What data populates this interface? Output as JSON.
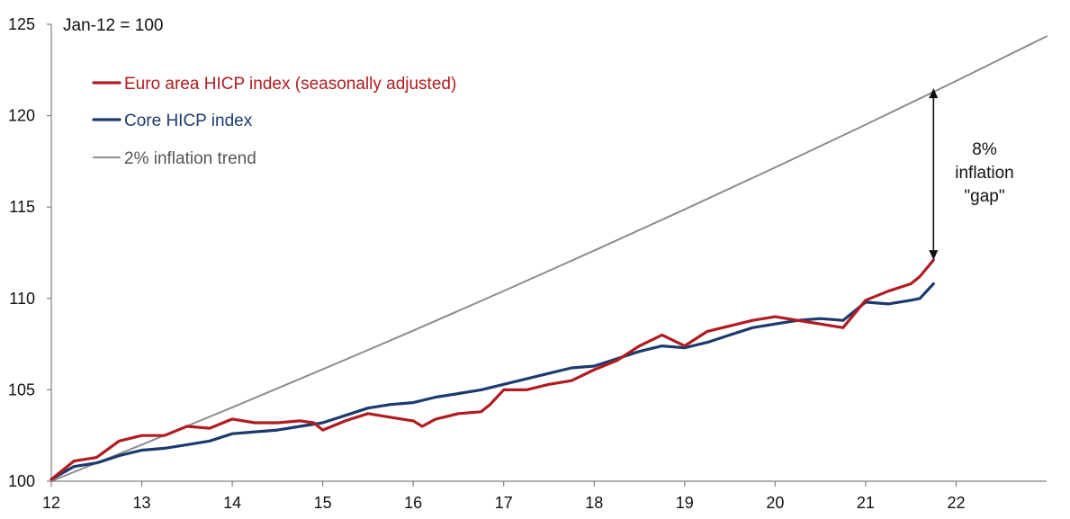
{
  "chart_data": {
    "type": "line",
    "unit_note": "Jan-12 = 100",
    "title": "",
    "xlabel": "",
    "ylabel": "",
    "xlim": [
      12,
      23
    ],
    "ylim": [
      100,
      125
    ],
    "x_ticks": [
      12,
      13,
      14,
      15,
      16,
      17,
      18,
      19,
      20,
      21,
      22
    ],
    "x_tick_labels": [
      "12",
      "13",
      "14",
      "15",
      "16",
      "17",
      "18",
      "19",
      "20",
      "21",
      "22"
    ],
    "y_ticks": [
      100,
      105,
      110,
      115,
      120,
      125
    ],
    "y_tick_labels": [
      "100",
      "105",
      "110",
      "115",
      "120",
      "125"
    ],
    "grid": false,
    "legend_position": "top-left",
    "annotation": {
      "lines": [
        "8%",
        "inflation",
        "\"gap\""
      ],
      "x": 21.75,
      "y_from": 112.1,
      "y_to": 121.5
    },
    "series": [
      {
        "name": "Euro area HICP index (seasonally adjusted)",
        "color": "#b01c20",
        "x": [
          12.0,
          12.25,
          12.5,
          12.75,
          13.0,
          13.25,
          13.5,
          13.75,
          14.0,
          14.25,
          14.5,
          14.75,
          14.9,
          15.0,
          15.25,
          15.5,
          15.75,
          16.0,
          16.1,
          16.25,
          16.5,
          16.75,
          16.85,
          17.0,
          17.25,
          17.5,
          17.75,
          18.0,
          18.25,
          18.5,
          18.75,
          19.0,
          19.25,
          19.5,
          19.75,
          20.0,
          20.25,
          20.5,
          20.75,
          21.0,
          21.25,
          21.5,
          21.6,
          21.75
        ],
        "values": [
          100.1,
          101.1,
          101.3,
          102.2,
          102.5,
          102.5,
          103.0,
          102.9,
          103.4,
          103.2,
          103.2,
          103.3,
          103.2,
          102.8,
          103.3,
          103.7,
          103.5,
          103.3,
          103.0,
          103.4,
          103.7,
          103.8,
          104.2,
          105.0,
          105.0,
          105.3,
          105.5,
          106.1,
          106.6,
          107.4,
          108.0,
          107.4,
          108.2,
          108.5,
          108.8,
          109.0,
          108.8,
          108.6,
          108.4,
          109.9,
          110.4,
          110.8,
          111.2,
          112.1
        ]
      },
      {
        "name": "Core HICP index",
        "color": "#1c3a6e",
        "x": [
          12.0,
          12.25,
          12.5,
          12.75,
          13.0,
          13.25,
          13.5,
          13.75,
          14.0,
          14.25,
          14.5,
          14.75,
          15.0,
          15.25,
          15.5,
          15.75,
          16.0,
          16.25,
          16.5,
          16.75,
          17.0,
          17.25,
          17.5,
          17.75,
          18.0,
          18.25,
          18.5,
          18.75,
          19.0,
          19.25,
          19.5,
          19.75,
          20.0,
          20.25,
          20.5,
          20.75,
          21.0,
          21.25,
          21.5,
          21.6,
          21.75
        ],
        "values": [
          100.1,
          100.8,
          101.0,
          101.4,
          101.7,
          101.8,
          102.0,
          102.2,
          102.6,
          102.7,
          102.8,
          103.0,
          103.2,
          103.6,
          104.0,
          104.2,
          104.3,
          104.6,
          104.8,
          105.0,
          105.3,
          105.6,
          105.9,
          106.2,
          106.3,
          106.7,
          107.1,
          107.4,
          107.3,
          107.6,
          108.0,
          108.4,
          108.6,
          108.8,
          108.9,
          108.8,
          109.8,
          109.7,
          109.9,
          110.0,
          110.8
        ]
      },
      {
        "name": "2% inflation trend",
        "color": "#8c8c8c",
        "x": [
          12.0,
          13.0,
          14.0,
          15.0,
          16.0,
          17.0,
          18.0,
          19.0,
          20.0,
          21.0,
          22.0,
          23.0
        ],
        "values": [
          100.0,
          102.0,
          104.04,
          106.12,
          108.24,
          110.41,
          112.62,
          114.87,
          117.17,
          119.51,
          121.9,
          124.34
        ]
      }
    ]
  }
}
